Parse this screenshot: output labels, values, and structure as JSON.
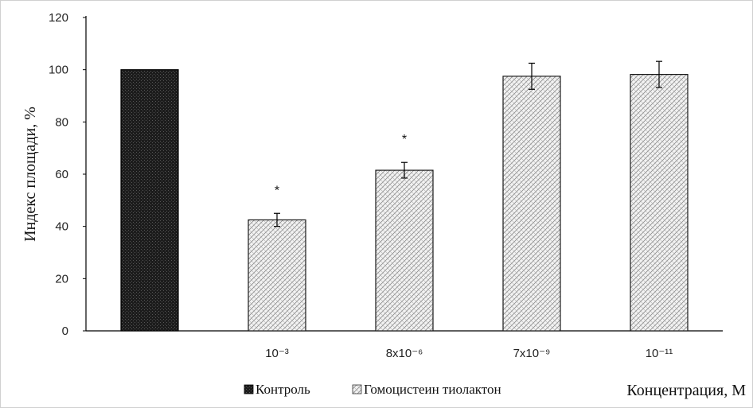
{
  "chart_data": {
    "type": "bar",
    "categories": [
      "",
      "10⁻³",
      "8x10⁻⁶",
      "7x10⁻⁹",
      "10⁻¹¹"
    ],
    "series": [
      {
        "name": "Контроль",
        "values": [
          100,
          null,
          null,
          null,
          null
        ],
        "color": "#1a1a1a"
      },
      {
        "name": "Гомоцистеин тиолактон",
        "values": [
          null,
          42.5,
          61.5,
          97.5,
          98.2
        ],
        "color": "#e0e0e0"
      }
    ],
    "errors": [
      0,
      2.5,
      3.0,
      5.0,
      5.0
    ],
    "annotations": [
      "",
      "*",
      "*",
      "",
      ""
    ],
    "ylabel": "Индекс площади, %",
    "xlabel": "Концентрация, М",
    "ylim": [
      0,
      120
    ],
    "yticks": [
      0,
      20,
      40,
      60,
      80,
      100,
      120
    ],
    "grid": false,
    "legend_placement": "bottom-left"
  }
}
